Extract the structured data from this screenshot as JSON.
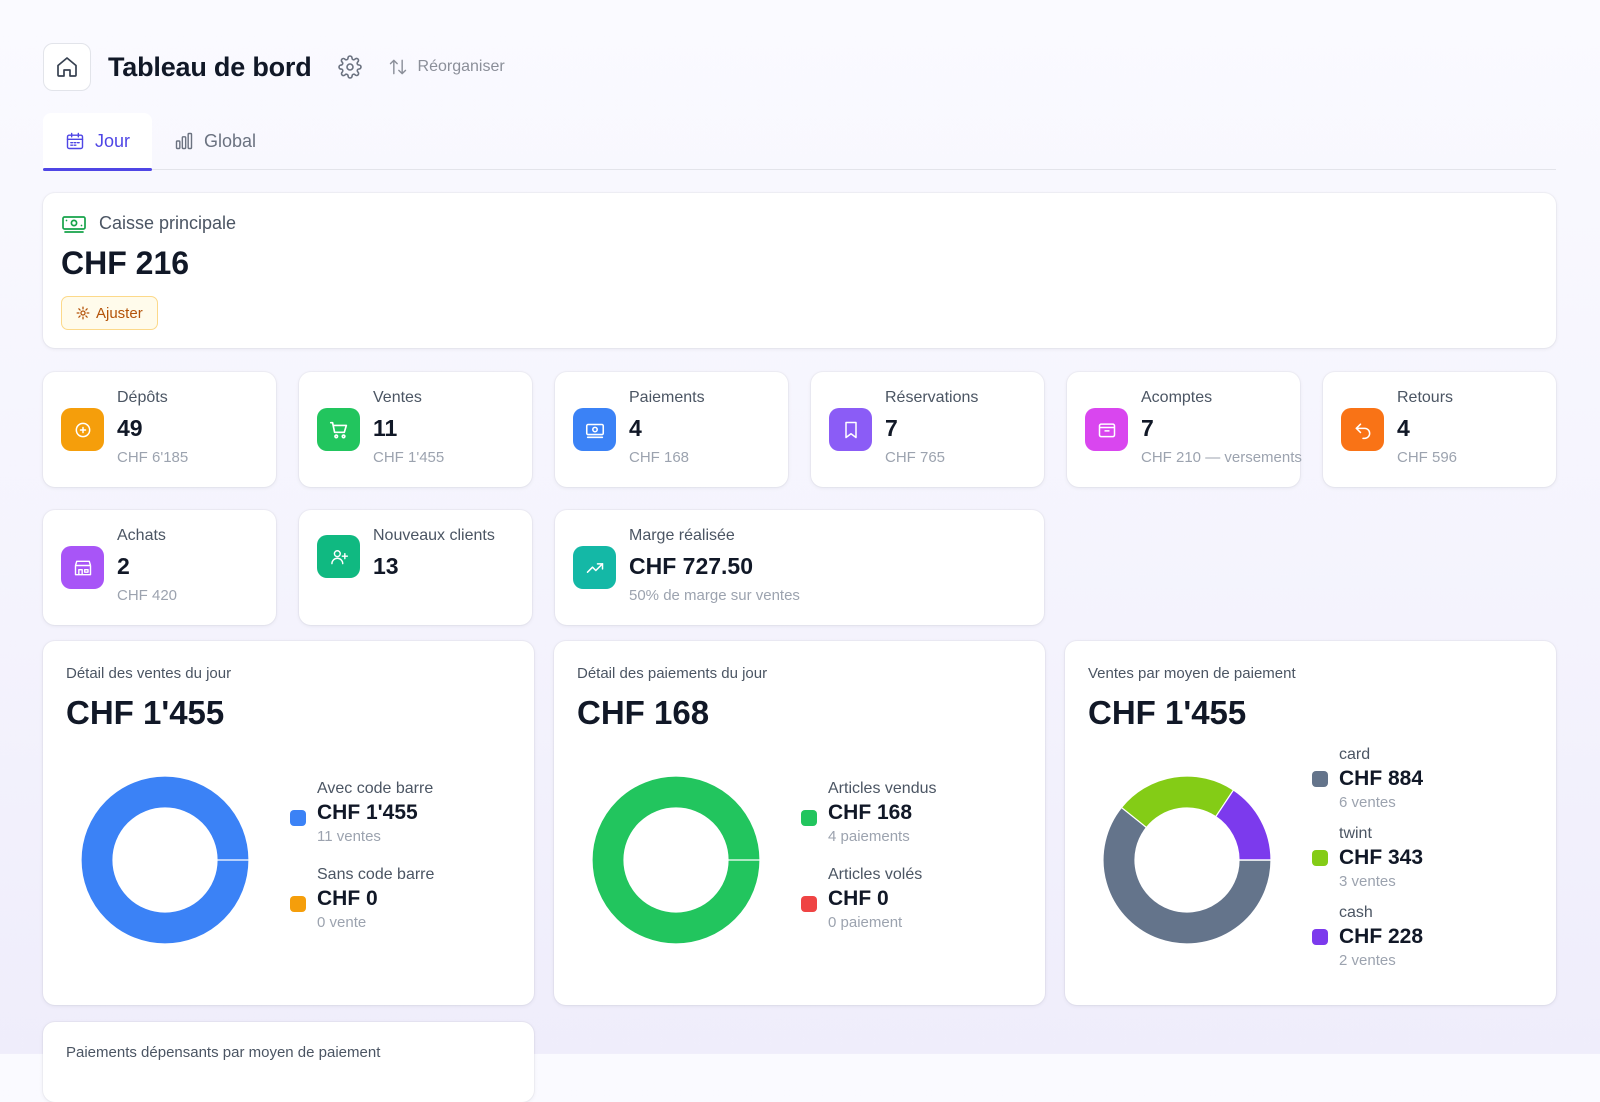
{
  "header": {
    "title": "Tableau de bord",
    "reorganize_label": "Réorganiser"
  },
  "tabs": [
    {
      "label": "Jour",
      "active": true,
      "icon": "calendar-icon"
    },
    {
      "label": "Global",
      "active": false,
      "icon": "bar-chart-icon"
    }
  ],
  "cash": {
    "label": "Caisse principale",
    "amount": "CHF 216",
    "adjust_label": "Ajuster"
  },
  "kpis": [
    {
      "label": "Dépôts",
      "value": "49",
      "sub": "CHF 6'185",
      "color": "#f59e0b",
      "icon": "plus-circle-icon"
    },
    {
      "label": "Ventes",
      "value": "11",
      "sub": "CHF 1'455",
      "color": "#22c55e",
      "icon": "cart-icon"
    },
    {
      "label": "Paiements",
      "value": "4",
      "sub": "CHF 168",
      "color": "#3b82f6",
      "icon": "money-icon"
    },
    {
      "label": "Réservations",
      "value": "7",
      "sub": "CHF 765",
      "color": "#8b5cf6",
      "icon": "bookmark-icon"
    },
    {
      "label": "Acomptes",
      "value": "7",
      "sub": "CHF 210 — versements",
      "color": "#d946ef",
      "icon": "wallet-icon"
    },
    {
      "label": "Retours",
      "value": "4",
      "sub": "CHF 596",
      "color": "#f97316",
      "icon": "undo-icon"
    },
    {
      "label": "Achats",
      "value": "2",
      "sub": "CHF 420",
      "color": "#a855f7",
      "icon": "store-icon"
    },
    {
      "label": "Nouveaux clients",
      "value": "13",
      "sub": "",
      "color": "#10b981",
      "icon": "user-plus-icon"
    },
    {
      "label": "Marge réalisée",
      "value": "CHF 727.50",
      "sub": "50% de marge sur ventes",
      "color": "#14b8a6",
      "icon": "trend-up-icon"
    }
  ],
  "sales_detail": {
    "title": "Détail des ventes du jour",
    "total": "CHF 1'455",
    "legend": [
      {
        "name": "Avec code barre",
        "amount": "CHF 1'455",
        "sub": "11 ventes",
        "color": "#3b82f6"
      },
      {
        "name": "Sans code barre",
        "amount": "CHF 0",
        "sub": "0 vente",
        "color": "#f59e0b"
      }
    ]
  },
  "payments_detail": {
    "title": "Détail des paiements du jour",
    "total": "CHF 168",
    "legend": [
      {
        "name": "Articles vendus",
        "amount": "CHF 168",
        "sub": "4 paiements",
        "color": "#22c55e"
      },
      {
        "name": "Articles volés",
        "amount": "CHF 0",
        "sub": "0 paiement",
        "color": "#ef4444"
      }
    ]
  },
  "sales_by_payment": {
    "title": "Ventes par moyen de paiement",
    "total": "CHF 1'455",
    "legend": [
      {
        "name": "card",
        "amount": "CHF 884",
        "sub": "6 ventes",
        "color": "#64748b"
      },
      {
        "name": "twint",
        "amount": "CHF 343",
        "sub": "3 ventes",
        "color": "#84cc16"
      },
      {
        "name": "cash",
        "amount": "CHF 228",
        "sub": "2 ventes",
        "color": "#7c3aed"
      }
    ]
  },
  "bottom_card": {
    "title": "Paiements dépensants par moyen de paiement"
  },
  "chart_data": [
    {
      "type": "pie",
      "title": "Détail des ventes du jour",
      "categories": [
        "Avec code barre",
        "Sans code barre"
      ],
      "values": [
        1455,
        0
      ],
      "colors": [
        "#3b82f6",
        "#f59e0b"
      ]
    },
    {
      "type": "pie",
      "title": "Détail des paiements du jour",
      "categories": [
        "Articles vendus",
        "Articles volés"
      ],
      "values": [
        168,
        0
      ],
      "colors": [
        "#22c55e",
        "#ef4444"
      ]
    },
    {
      "type": "pie",
      "title": "Ventes par moyen de paiement",
      "categories": [
        "card",
        "twint",
        "cash"
      ],
      "values": [
        884,
        343,
        228
      ],
      "colors": [
        "#64748b",
        "#84cc16",
        "#7c3aed"
      ]
    }
  ]
}
